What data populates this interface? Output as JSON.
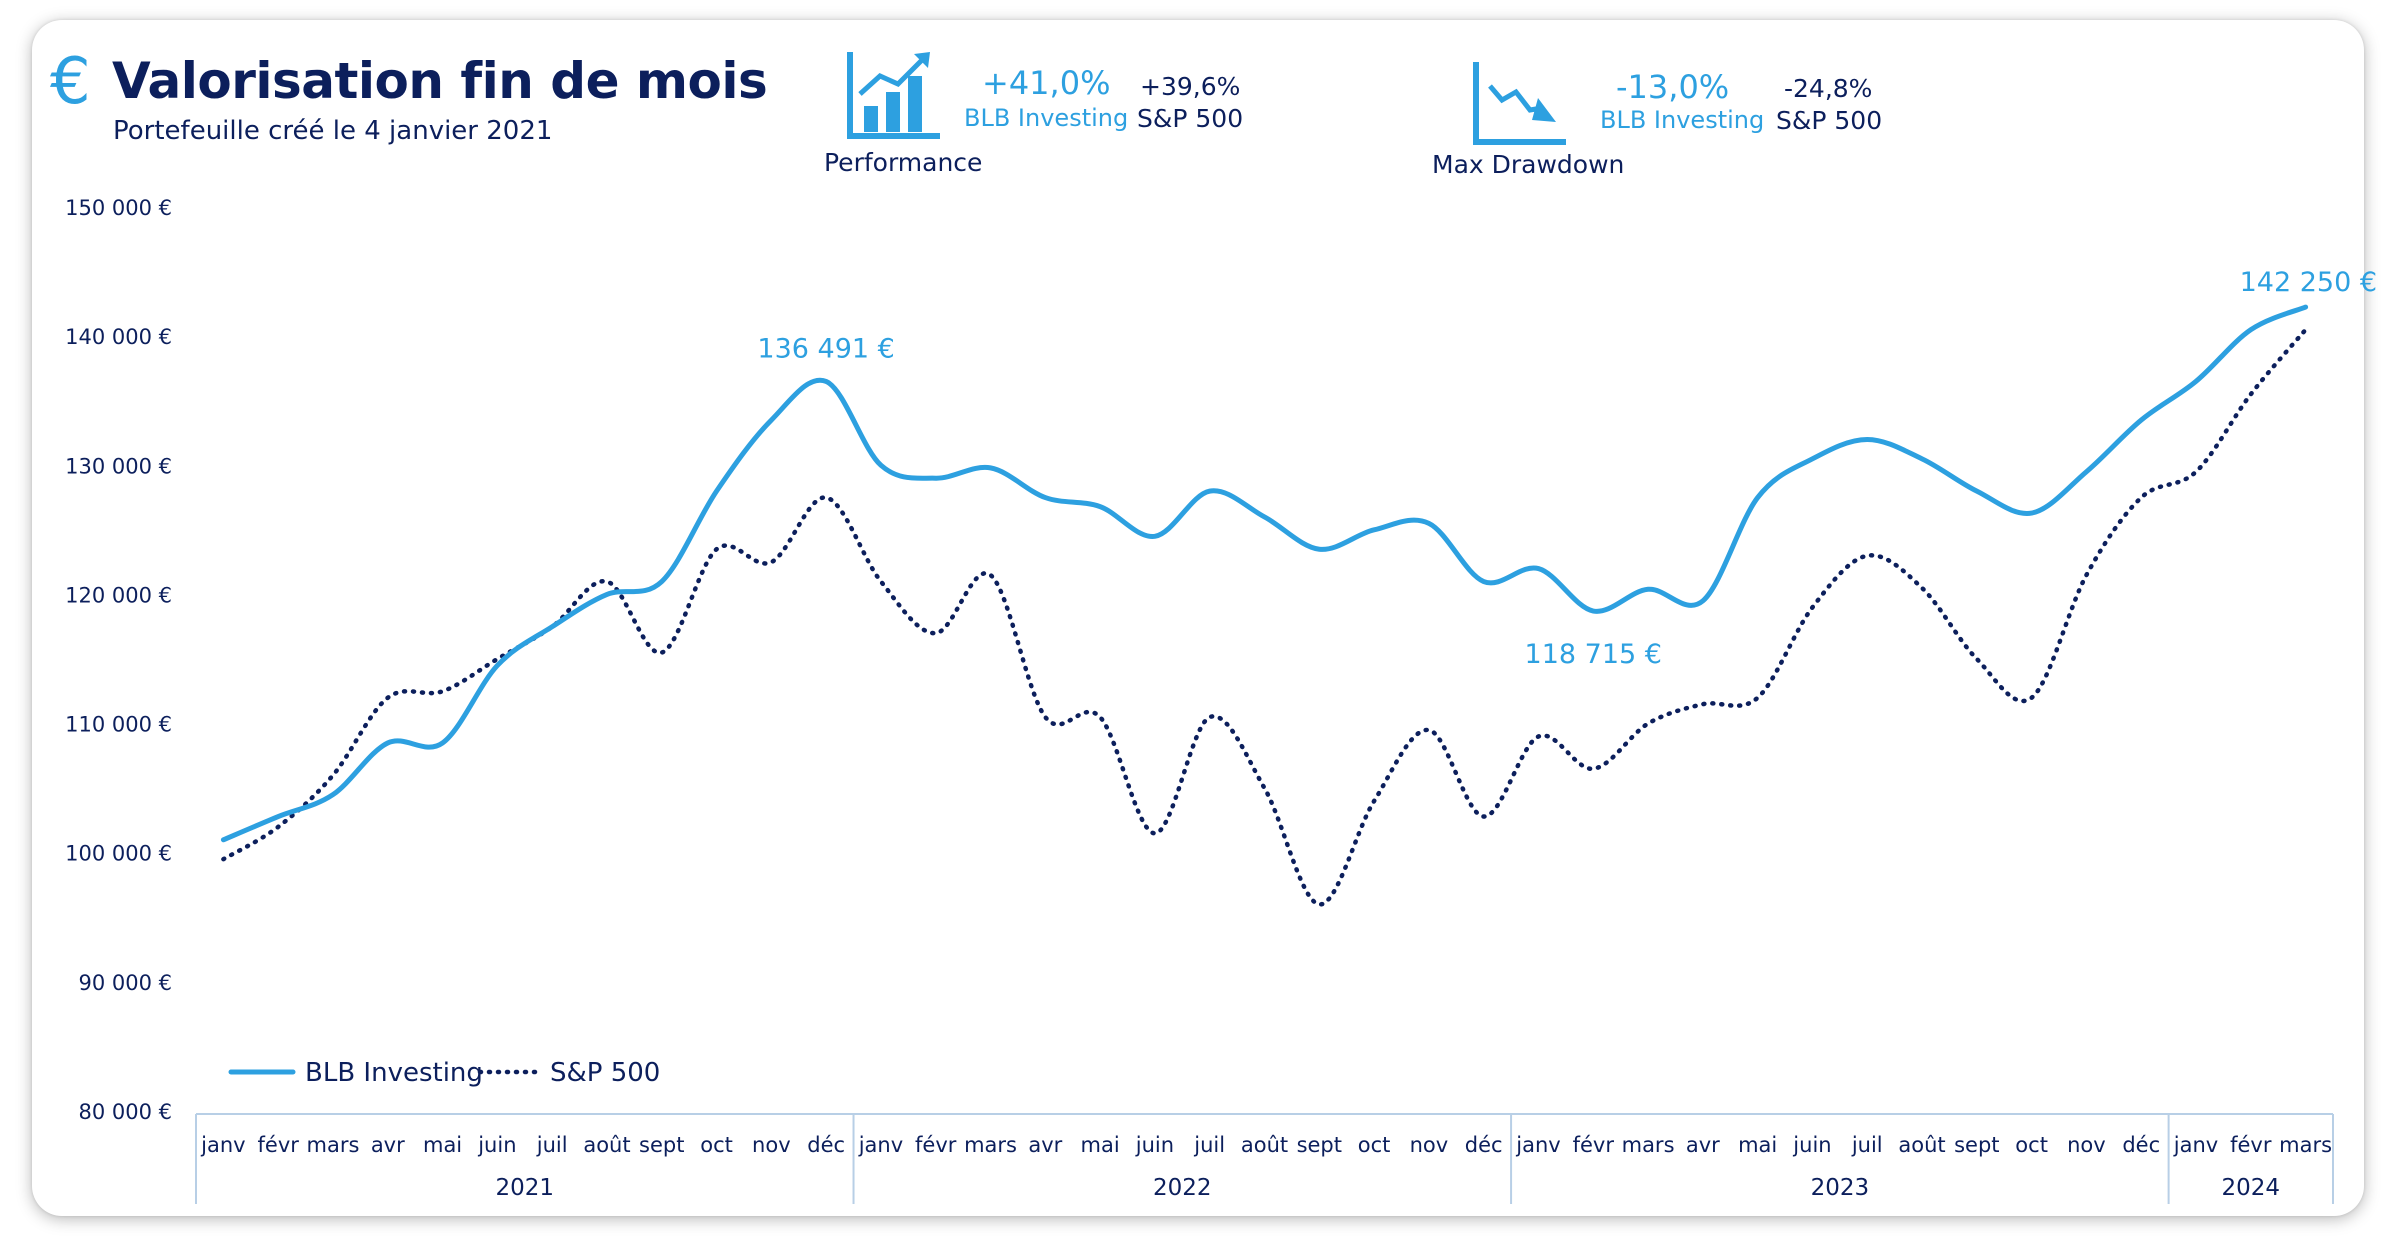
{
  "header": {
    "icon": "euro-icon",
    "title": "Valorisation fin de mois",
    "subtitle": "Portefeuille créé le 4 janvier 2021"
  },
  "kpis": {
    "performance": {
      "icon": "rising-bar-chart-icon",
      "label": "Performance",
      "portfolio_value": "+41,0%",
      "portfolio_name": "BLB Investing",
      "benchmark_value": "+39,6%",
      "benchmark_name": "S&P 500"
    },
    "drawdown": {
      "icon": "falling-line-chart-icon",
      "label": "Max Drawdown",
      "portfolio_value": "-13,0%",
      "portfolio_name": "BLB Investing",
      "benchmark_value": "-24,8%",
      "benchmark_name": "S&P 500"
    }
  },
  "colors": {
    "portfolio": "#2da0e0",
    "benchmark": "#0c1f5c",
    "axis": "#b8cfe6"
  },
  "chart_data": {
    "type": "line",
    "ylim": [
      80000,
      150000
    ],
    "y_ticks": [
      "80 000 €",
      "90 000 €",
      "100 000 €",
      "110 000 €",
      "120 000 €",
      "130 000 €",
      "140 000 €",
      "150 000 €"
    ],
    "y_tick_values": [
      80000,
      90000,
      100000,
      110000,
      120000,
      130000,
      140000,
      150000
    ],
    "categories": [
      "janv",
      "févr",
      "mars",
      "avr",
      "mai",
      "juin",
      "juil",
      "août",
      "sept",
      "oct",
      "nov",
      "déc",
      "janv",
      "févr",
      "mars",
      "avr",
      "mai",
      "juin",
      "juil",
      "août",
      "sept",
      "oct",
      "nov",
      "déc",
      "janv",
      "févr",
      "mars",
      "avr",
      "mai",
      "juin",
      "juil",
      "août",
      "sept",
      "oct",
      "nov",
      "déc",
      "janv",
      "févr",
      "mars"
    ],
    "year_groups": [
      {
        "label": "2021",
        "count": 12
      },
      {
        "label": "2022",
        "count": 12
      },
      {
        "label": "2023",
        "count": 12
      },
      {
        "label": "2024",
        "count": 3
      }
    ],
    "series": [
      {
        "name": "BLB Investing",
        "style": "solid",
        "values": [
          101000,
          102800,
          104500,
          108500,
          108500,
          114500,
          117500,
          120000,
          121000,
          128000,
          133500,
          136491,
          130000,
          129000,
          129800,
          127500,
          126800,
          124500,
          128000,
          126000,
          123500,
          125000,
          125500,
          121000,
          122000,
          118715,
          120400,
          119500,
          127500,
          130500,
          132000,
          130500,
          128000,
          126300,
          129500,
          133500,
          136500,
          140500,
          142250
        ]
      },
      {
        "name": "S&P 500",
        "style": "dotted",
        "values": [
          99500,
          102000,
          106000,
          112000,
          112500,
          115000,
          117500,
          121000,
          115500,
          123500,
          122500,
          127500,
          121000,
          117000,
          121500,
          110500,
          110500,
          101500,
          110500,
          105000,
          96000,
          104000,
          109500,
          102800,
          109000,
          106500,
          110000,
          111500,
          112000,
          119000,
          123000,
          120500,
          115000,
          112000,
          121500,
          127500,
          129500,
          135500,
          140500
        ]
      }
    ],
    "annotations": [
      {
        "series": "BLB Investing",
        "index": 11,
        "label": "136 491 €"
      },
      {
        "series": "BLB Investing",
        "index": 25,
        "label": "118 715 €"
      },
      {
        "series": "BLB Investing",
        "index": 38,
        "label": "142 250 €"
      }
    ],
    "legend_position": "bottom-left",
    "grid": false
  }
}
